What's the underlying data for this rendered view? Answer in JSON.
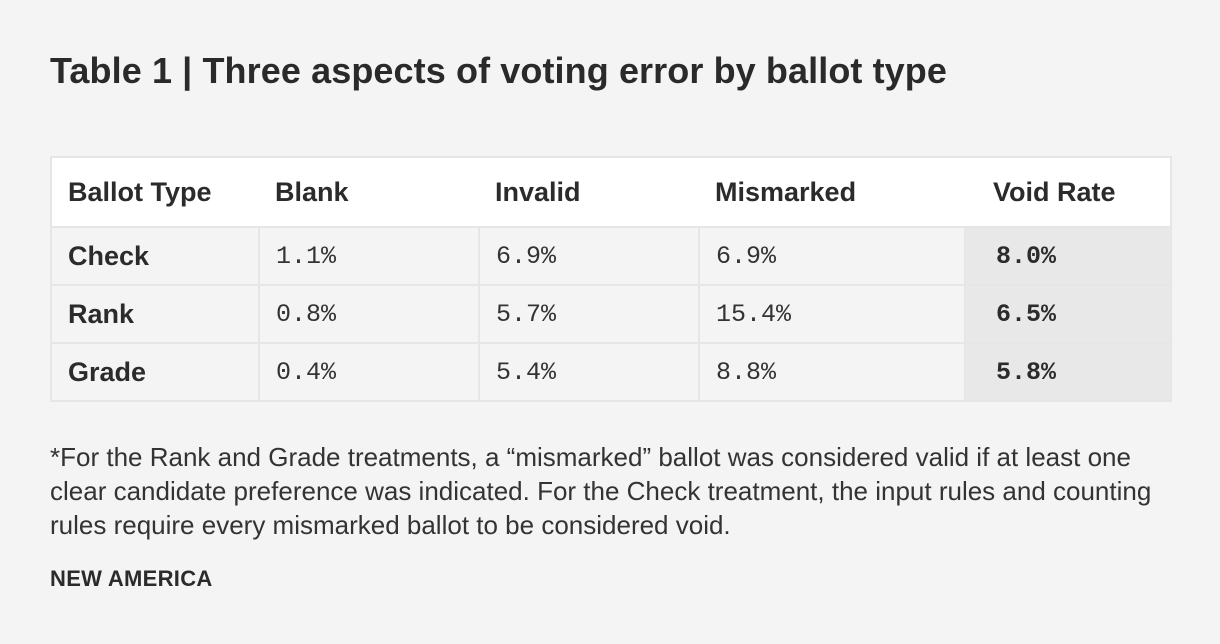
{
  "chart_data": {
    "type": "table",
    "title": "Table 1 | Three aspects of voting error by ballot type",
    "columns": [
      "Ballot Type",
      "Blank",
      "Invalid",
      "Mismarked",
      "Void Rate"
    ],
    "rows": [
      {
        "label": "Check",
        "values": [
          "1.1%",
          "6.9%",
          "6.9%",
          "8.0%"
        ]
      },
      {
        "label": "Rank",
        "values": [
          "0.8%",
          "5.7%",
          "15.4%",
          "6.5%"
        ]
      },
      {
        "label": "Grade",
        "values": [
          "0.4%",
          "5.4%",
          "8.8%",
          "5.8%"
        ]
      }
    ],
    "footnote": "*For the Rank and Grade treatments, a “mismarked” ballot was considered valid if at least one clear candidate preference was indicated. For the Check treatment, the input rules and counting rules require every mismarked ballot to be considered void.",
    "source": "NEW AMERICA"
  },
  "colors": {
    "background": "#f4f4f4",
    "header_bg": "#ffffff",
    "highlight_column_bg": "#e8e8e8",
    "border": "#e6e6e6",
    "text": "#2b2b2b"
  }
}
